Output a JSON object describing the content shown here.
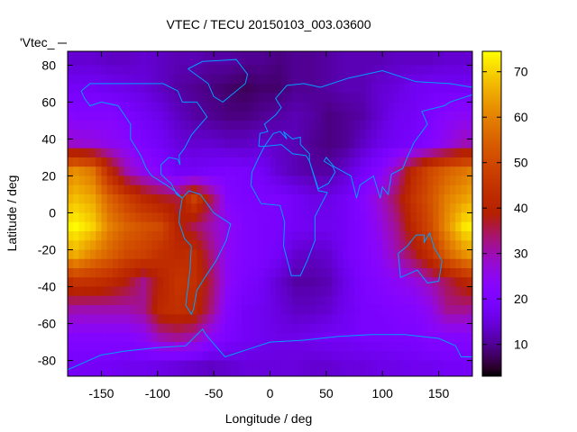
{
  "chart_data": {
    "type": "heatmap",
    "title": "VTEC / TECU 20150103_003.03600",
    "xlabel": "Longitude / deg",
    "ylabel": "Latitude / deg",
    "key_label": "'Vtec_",
    "xlim": [
      -180,
      180
    ],
    "ylim": [
      -88.5,
      87.5
    ],
    "cbrange": [
      3,
      74.5
    ],
    "xticks": [
      -150,
      -100,
      -50,
      0,
      50,
      100,
      150
    ],
    "yticks": [
      -80,
      -60,
      -40,
      -20,
      0,
      20,
      40,
      60,
      80
    ],
    "cbticks": [
      10,
      20,
      30,
      40,
      50,
      60,
      70
    ],
    "palette": "black-blue-purple-red-yellow",
    "coastline_color": "#00a0ff",
    "grid_lon_centers": [
      -172.5,
      -157.5,
      -142.5,
      -127.5,
      -112.5,
      -97.5,
      -82.5,
      -67.5,
      -52.5,
      -37.5,
      -22.5,
      -7.5,
      7.5,
      22.5,
      37.5,
      52.5,
      67.5,
      82.5,
      97.5,
      112.5,
      127.5,
      142.5,
      157.5,
      172.5
    ],
    "grid_lat_centers": [
      82.5,
      67.5,
      52.5,
      37.5,
      22.5,
      7.5,
      -7.5,
      -22.5,
      -37.5,
      -52.5,
      -67.5,
      -82.5
    ],
    "values": [
      [
        14,
        14,
        13,
        13,
        14,
        13,
        12,
        12,
        11,
        11,
        10,
        10,
        9,
        10,
        10,
        11,
        12,
        12,
        12,
        13,
        13,
        13,
        14,
        14
      ],
      [
        18,
        18,
        17,
        16,
        15,
        13,
        11,
        10,
        9,
        8,
        7,
        8,
        8,
        10,
        10,
        11,
        12,
        12,
        14,
        15,
        17,
        18,
        18,
        18
      ],
      [
        22,
        22,
        22,
        20,
        18,
        16,
        13,
        11,
        10,
        9,
        9,
        10,
        11,
        12,
        11,
        9,
        10,
        11,
        14,
        17,
        18,
        20,
        23,
        24
      ],
      [
        28,
        27,
        25,
        23,
        20,
        18,
        15,
        14,
        14,
        13,
        13,
        14,
        13,
        12,
        10,
        9,
        10,
        13,
        16,
        18,
        19,
        22,
        26,
        30
      ],
      [
        62,
        58,
        42,
        30,
        25,
        22,
        18,
        18,
        19,
        20,
        19,
        18,
        14,
        12,
        11,
        11,
        14,
        18,
        22,
        30,
        42,
        50,
        55,
        58
      ],
      [
        68,
        65,
        55,
        48,
        42,
        38,
        36,
        48,
        35,
        22,
        20,
        20,
        20,
        18,
        16,
        16,
        18,
        22,
        28,
        35,
        45,
        52,
        60,
        64
      ],
      [
        74,
        70,
        60,
        55,
        52,
        50,
        40,
        35,
        30,
        25,
        21,
        20,
        19,
        18,
        17,
        17,
        18,
        21,
        26,
        32,
        42,
        50,
        62,
        72
      ],
      [
        66,
        60,
        55,
        50,
        48,
        44,
        42,
        43,
        33,
        24,
        21,
        20,
        18,
        14,
        13,
        14,
        18,
        21,
        24,
        30,
        36,
        44,
        55,
        62
      ],
      [
        45,
        44,
        42,
        38,
        32,
        40,
        45,
        44,
        35,
        24,
        20,
        18,
        14,
        11,
        11,
        12,
        16,
        20,
        22,
        24,
        26,
        30,
        35,
        40
      ],
      [
        30,
        30,
        30,
        30,
        32,
        42,
        44,
        42,
        33,
        22,
        18,
        17,
        15,
        13,
        13,
        14,
        17,
        19,
        20,
        21,
        22,
        25,
        32,
        32
      ],
      [
        22,
        22,
        22,
        22,
        24,
        30,
        32,
        30,
        24,
        20,
        18,
        17,
        16,
        16,
        17,
        18,
        18,
        19,
        19,
        20,
        20,
        22,
        22,
        22
      ],
      [
        18,
        18,
        18,
        17,
        17,
        16,
        15,
        14,
        13,
        14,
        15,
        15,
        15,
        15,
        14,
        14,
        15,
        15,
        16,
        16,
        17,
        17,
        18,
        18
      ]
    ],
    "coastlines": [
      [
        [
          -168,
          66
        ],
        [
          -160,
          70
        ],
        [
          -140,
          70
        ],
        [
          -125,
          70
        ],
        [
          -95,
          70
        ],
        [
          -82,
          66
        ],
        [
          -78,
          60
        ],
        [
          -65,
          60
        ],
        [
          -56,
          52
        ],
        [
          -66,
          45
        ],
        [
          -70,
          42
        ],
        [
          -76,
          35
        ],
        [
          -81,
          31
        ],
        [
          -80,
          26
        ],
        [
          -82,
          29
        ],
        [
          -90,
          30
        ],
        [
          -97,
          26
        ],
        [
          -97,
          21
        ],
        [
          -92,
          18
        ],
        [
          -88,
          16
        ],
        [
          -83,
          10
        ],
        [
          -78,
          8
        ],
        [
          -85,
          12
        ],
        [
          -92,
          15
        ],
        [
          -105,
          20
        ],
        [
          -110,
          24
        ],
        [
          -115,
          31
        ],
        [
          -118,
          34
        ],
        [
          -124,
          40
        ],
        [
          -124,
          48
        ],
        [
          -135,
          58
        ],
        [
          -150,
          60
        ],
        [
          -160,
          58
        ],
        [
          -165,
          62
        ],
        [
          -168,
          66
        ]
      ],
      [
        [
          -78,
          8
        ],
        [
          -72,
          12
        ],
        [
          -62,
          10
        ],
        [
          -50,
          0
        ],
        [
          -35,
          -6
        ],
        [
          -39,
          -15
        ],
        [
          -48,
          -26
        ],
        [
          -58,
          -35
        ],
        [
          -65,
          -42
        ],
        [
          -68,
          -52
        ],
        [
          -70,
          -55
        ],
        [
          -75,
          -50
        ],
        [
          -73,
          -40
        ],
        [
          -71,
          -30
        ],
        [
          -70,
          -18
        ],
        [
          -76,
          -14
        ],
        [
          -81,
          -5
        ],
        [
          -80,
          1
        ],
        [
          -78,
          8
        ]
      ],
      [
        [
          -17,
          15
        ],
        [
          -16,
          22
        ],
        [
          -10,
          30
        ],
        [
          -5,
          36
        ],
        [
          10,
          37
        ],
        [
          20,
          32
        ],
        [
          32,
          31
        ],
        [
          35,
          28
        ],
        [
          43,
          12
        ],
        [
          51,
          11
        ],
        [
          40,
          -2
        ],
        [
          40,
          -15
        ],
        [
          33,
          -26
        ],
        [
          27,
          -34
        ],
        [
          19,
          -34
        ],
        [
          12,
          -18
        ],
        [
          13,
          -5
        ],
        [
          9,
          4
        ],
        [
          -8,
          5
        ],
        [
          -17,
          15
        ]
      ],
      [
        [
          -10,
          36
        ],
        [
          -9,
          43
        ],
        [
          -2,
          44
        ],
        [
          -5,
          48
        ],
        [
          5,
          53
        ],
        [
          10,
          57
        ],
        [
          5,
          62
        ],
        [
          15,
          69
        ],
        [
          30,
          70
        ],
        [
          45,
          68
        ],
        [
          70,
          73
        ],
        [
          100,
          77
        ],
        [
          130,
          71
        ],
        [
          160,
          70
        ],
        [
          180,
          68
        ]
      ],
      [
        [
          180,
          64
        ],
        [
          160,
          60
        ],
        [
          155,
          58
        ],
        [
          135,
          55
        ],
        [
          140,
          48
        ],
        [
          128,
          38
        ],
        [
          122,
          30
        ],
        [
          118,
          24
        ],
        [
          108,
          21
        ],
        [
          105,
          10
        ],
        [
          100,
          14
        ],
        [
          98,
          8
        ],
        [
          92,
          20
        ],
        [
          80,
          15
        ],
        [
          77,
          8
        ],
        [
          72,
          20
        ],
        [
          57,
          25
        ],
        [
          50,
          30
        ],
        [
          48,
          28
        ],
        [
          56,
          25
        ],
        [
          58,
          22
        ],
        [
          52,
          16
        ],
        [
          43,
          13
        ],
        [
          35,
          28
        ],
        [
          35,
          32
        ],
        [
          27,
          37
        ],
        [
          27,
          41
        ],
        [
          20,
          40
        ],
        [
          12,
          44
        ],
        [
          15,
          40
        ],
        [
          9,
          44
        ],
        [
          3,
          43
        ],
        [
          -5,
          36
        ],
        [
          -10,
          36
        ]
      ],
      [
        [
          114,
          -22
        ],
        [
          122,
          -18
        ],
        [
          130,
          -12
        ],
        [
          137,
          -12
        ],
        [
          137,
          -16
        ],
        [
          142,
          -11
        ],
        [
          146,
          -19
        ],
        [
          153,
          -26
        ],
        [
          150,
          -37
        ],
        [
          140,
          -38
        ],
        [
          131,
          -31
        ],
        [
          116,
          -35
        ],
        [
          114,
          -22
        ]
      ],
      [
        [
          -180,
          -85
        ],
        [
          -150,
          -77
        ],
        [
          -130,
          -75
        ],
        [
          -100,
          -73
        ],
        [
          -75,
          -72
        ],
        [
          -60,
          -63
        ],
        [
          -57,
          -66
        ],
        [
          -40,
          -78
        ],
        [
          -20,
          -74
        ],
        [
          0,
          -70
        ],
        [
          30,
          -69
        ],
        [
          60,
          -67
        ],
        [
          90,
          -66
        ],
        [
          120,
          -66
        ],
        [
          150,
          -68
        ],
        [
          165,
          -72
        ],
        [
          170,
          -78
        ],
        [
          180,
          -78
        ]
      ],
      [
        [
          -73,
          78
        ],
        [
          -60,
          82
        ],
        [
          -30,
          83
        ],
        [
          -20,
          75
        ],
        [
          -22,
          70
        ],
        [
          -42,
          60
        ],
        [
          -50,
          63
        ],
        [
          -55,
          70
        ],
        [
          -73,
          78
        ]
      ]
    ]
  }
}
